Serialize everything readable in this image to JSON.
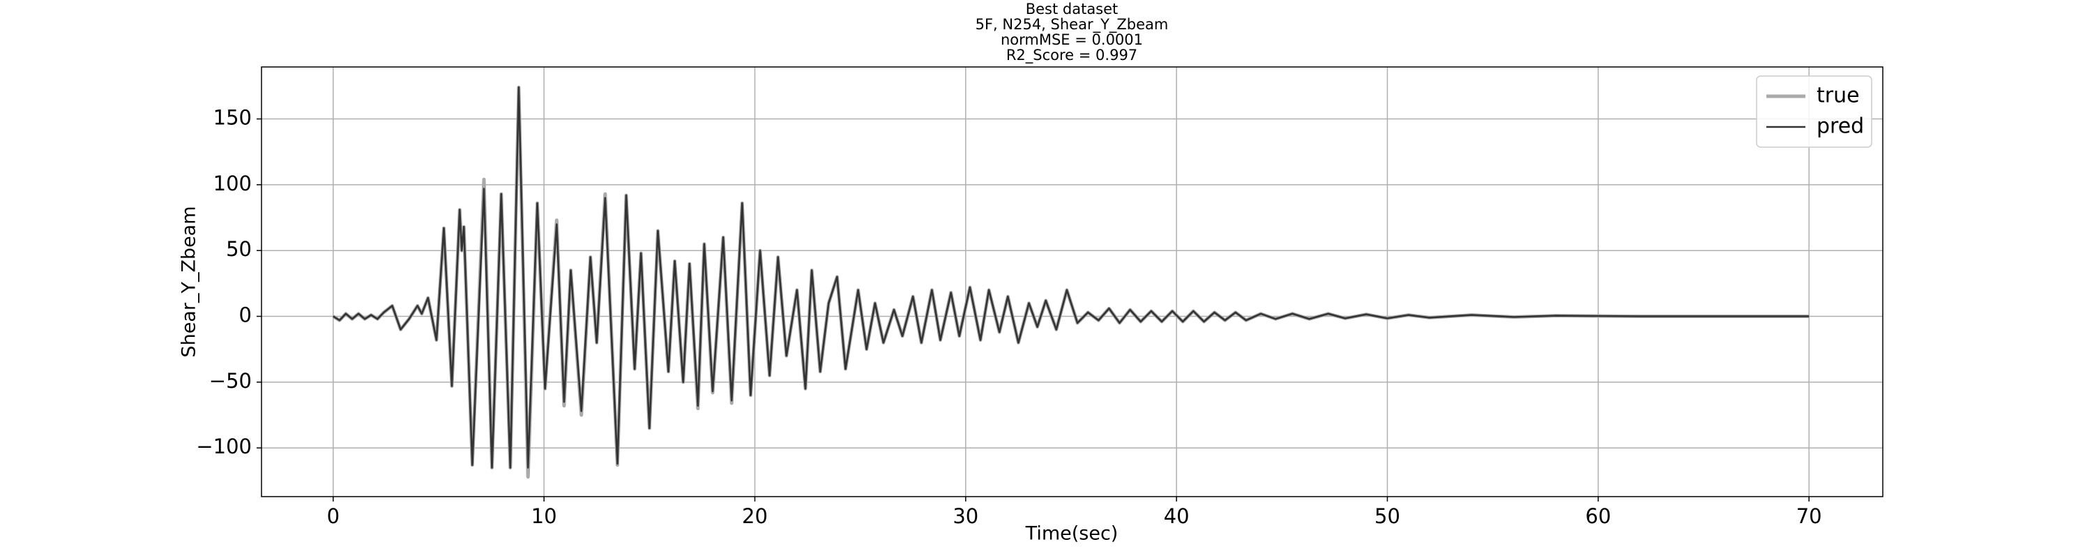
{
  "chart_data": {
    "type": "line",
    "title": [
      "Best dataset",
      "5F, N254, Shear_Y_Zbeam",
      "normMSE = 0.0001",
      "R2_Score = 0.997"
    ],
    "xlabel": "Time(sec)",
    "ylabel": "Shear_Y_Zbeam",
    "x": [
      0,
      0.3,
      0.6,
      0.9,
      1.2,
      1.5,
      1.8,
      2.1,
      2.4,
      2.8,
      3.2,
      3.6,
      4.0,
      4.2,
      4.5,
      4.9,
      5.25,
      5.63,
      6.0,
      6.1,
      6.2,
      6.6,
      7.15,
      7.53,
      7.97,
      8.4,
      8.8,
      9.24,
      9.68,
      10.05,
      10.6,
      10.95,
      11.27,
      11.77,
      12.2,
      12.5,
      12.9,
      13.48,
      13.9,
      14.3,
      14.6,
      15.0,
      15.4,
      15.9,
      16.2,
      16.6,
      16.9,
      17.3,
      17.6,
      18.0,
      18.5,
      18.9,
      19.4,
      19.8,
      20.25,
      20.7,
      21.1,
      21.5,
      22.0,
      22.4,
      22.7,
      23.1,
      23.5,
      23.9,
      24.3,
      24.9,
      25.3,
      25.7,
      26.1,
      26.6,
      27.0,
      27.5,
      27.9,
      28.4,
      28.8,
      29.3,
      29.7,
      30.2,
      30.7,
      31.1,
      31.6,
      32.0,
      32.5,
      33.0,
      33.4,
      33.8,
      34.3,
      34.8,
      35.3,
      35.8,
      36.3,
      36.8,
      37.3,
      37.8,
      38.3,
      38.8,
      39.3,
      39.8,
      40.3,
      40.8,
      41.3,
      41.8,
      42.3,
      42.8,
      43.3,
      44,
      44.7,
      45.5,
      46.3,
      47.2,
      48,
      49,
      50,
      51,
      52,
      54,
      56,
      58,
      62,
      70
    ],
    "series": [
      {
        "name": "true",
        "color": "#aaaaaa",
        "values": [
          0,
          -3,
          2,
          -2,
          2,
          -2,
          1,
          -2,
          3,
          8,
          -10,
          -2,
          8,
          2,
          14,
          -18,
          67,
          -53,
          81,
          50,
          68,
          -113,
          104,
          -115,
          93,
          -115,
          174,
          -122,
          86,
          -55,
          73,
          -68,
          35,
          -75,
          45,
          -20,
          93,
          -113,
          92,
          -40,
          48,
          -85,
          65,
          -42,
          42,
          -50,
          40,
          -70,
          55,
          -58,
          60,
          -66,
          86,
          -60,
          50,
          -45,
          45,
          -30,
          20,
          -55,
          35,
          -42,
          10,
          30,
          -40,
          20,
          -25,
          10,
          -20,
          5,
          -15,
          15,
          -20,
          20,
          -18,
          18,
          -15,
          22,
          -18,
          20,
          -12,
          15,
          -20,
          10,
          -8,
          12,
          -10,
          20,
          -5,
          3,
          -3,
          6,
          -5,
          5,
          -4,
          4,
          -4,
          4,
          -4,
          4,
          -4,
          3,
          -3,
          3,
          -3,
          2,
          -2,
          2,
          -2,
          2,
          -1.5,
          1.5,
          -1.5,
          1,
          -1,
          1,
          -0.5,
          0.5,
          0,
          0
        ]
      },
      {
        "name": "pred",
        "color": "#333333",
        "values": [
          0,
          -3,
          2,
          -2,
          2,
          -2,
          1,
          -2,
          3,
          8,
          -10,
          -2,
          8,
          2,
          14,
          -18,
          67,
          -53,
          81,
          50,
          68,
          -113,
          97,
          -115,
          93,
          -115,
          174,
          -115,
          86,
          -55,
          70,
          -65,
          35,
          -72,
          45,
          -20,
          90,
          -112,
          92,
          -40,
          48,
          -85,
          65,
          -42,
          42,
          -50,
          40,
          -68,
          55,
          -57,
          60,
          -64,
          86,
          -60,
          50,
          -45,
          45,
          -30,
          20,
          -55,
          35,
          -42,
          10,
          30,
          -40,
          20,
          -25,
          10,
          -20,
          5,
          -15,
          15,
          -20,
          20,
          -18,
          18,
          -15,
          22,
          -18,
          20,
          -12,
          15,
          -20,
          10,
          -8,
          12,
          -10,
          20,
          -5,
          3,
          -3,
          6,
          -5,
          5,
          -4,
          4,
          -4,
          4,
          -4,
          4,
          -4,
          3,
          -3,
          3,
          -3,
          2,
          -2,
          2,
          -2,
          2,
          -1.5,
          1.5,
          -1.5,
          1,
          -1,
          1,
          -0.5,
          0.5,
          0,
          0
        ]
      }
    ],
    "xlim": [
      -3.4,
      73.5
    ],
    "ylim": [
      -137,
      189.5
    ],
    "xticks": [
      0,
      10,
      20,
      30,
      40,
      50,
      60,
      70
    ],
    "yticks": [
      {
        "value": -100,
        "label": "−100"
      },
      {
        "value": -50,
        "label": "−50"
      },
      0,
      50,
      100,
      150
    ],
    "grid": true,
    "legend": "upper right"
  }
}
